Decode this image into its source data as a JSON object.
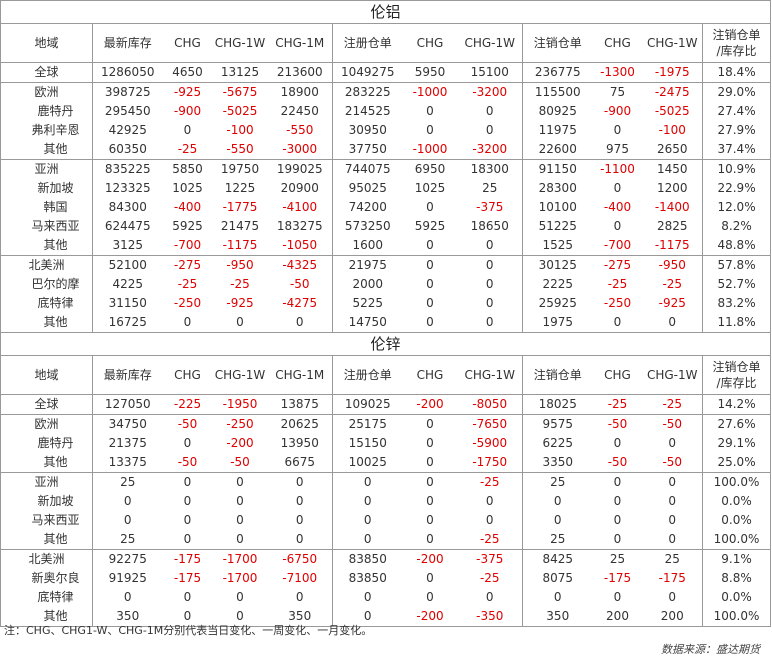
{
  "headers": [
    "地域",
    "最新库存",
    "CHG",
    "CHG-1W",
    "CHG-1M",
    "注册仓单",
    "CHG",
    "CHG-1W",
    "注销仓单",
    "CHG",
    "CHG-1W",
    "注销仓单/库存比"
  ],
  "sections": [
    {
      "title": "伦铝",
      "groups": [
        {
          "rows": [
            {
              "name": "全球",
              "sub": false,
              "cells": [
                "1286050",
                "4650",
                "13125",
                "213600",
                "1049275",
                "5950",
                "15100",
                "236775",
                "-1300",
                "-1975",
                "18.4%"
              ]
            }
          ]
        },
        {
          "rows": [
            {
              "name": "欧洲",
              "sub": false,
              "cells": [
                "398725",
                "-925",
                "-5675",
                "18900",
                "283225",
                "-1000",
                "-3200",
                "115500",
                "75",
                "-2475",
                "29.0%"
              ]
            },
            {
              "name": "鹿特丹",
              "sub": true,
              "cells": [
                "295450",
                "-900",
                "-5025",
                "22450",
                "214525",
                "0",
                "0",
                "80925",
                "-900",
                "-5025",
                "27.4%"
              ]
            },
            {
              "name": "弗利辛恩",
              "sub": true,
              "cells": [
                "42925",
                "0",
                "-100",
                "-550",
                "30950",
                "0",
                "0",
                "11975",
                "0",
                "-100",
                "27.9%"
              ]
            },
            {
              "name": "其他",
              "sub": true,
              "cells": [
                "60350",
                "-25",
                "-550",
                "-3000",
                "37750",
                "-1000",
                "-3200",
                "22600",
                "975",
                "2650",
                "37.4%"
              ]
            }
          ]
        },
        {
          "rows": [
            {
              "name": "亚洲",
              "sub": false,
              "cells": [
                "835225",
                "5850",
                "19750",
                "199025",
                "744075",
                "6950",
                "18300",
                "91150",
                "-1100",
                "1450",
                "10.9%"
              ]
            },
            {
              "name": "新加坡",
              "sub": true,
              "cells": [
                "123325",
                "1025",
                "1225",
                "20900",
                "95025",
                "1025",
                "25",
                "28300",
                "0",
                "1200",
                "22.9%"
              ]
            },
            {
              "name": "韩国",
              "sub": true,
              "cells": [
                "84300",
                "-400",
                "-1775",
                "-4100",
                "74200",
                "0",
                "-375",
                "10100",
                "-400",
                "-1400",
                "12.0%"
              ]
            },
            {
              "name": "马来西亚",
              "sub": true,
              "cells": [
                "624475",
                "5925",
                "21475",
                "183275",
                "573250",
                "5925",
                "18650",
                "51225",
                "0",
                "2825",
                "8.2%"
              ]
            },
            {
              "name": "其他",
              "sub": true,
              "cells": [
                "3125",
                "-700",
                "-1175",
                "-1050",
                "1600",
                "0",
                "0",
                "1525",
                "-700",
                "-1175",
                "48.8%"
              ]
            }
          ]
        },
        {
          "rows": [
            {
              "name": "北美洲",
              "sub": false,
              "cells": [
                "52100",
                "-275",
                "-950",
                "-4325",
                "21975",
                "0",
                "0",
                "30125",
                "-275",
                "-950",
                "57.8%"
              ]
            },
            {
              "name": "巴尔的摩",
              "sub": true,
              "cells": [
                "4225",
                "-25",
                "-25",
                "-50",
                "2000",
                "0",
                "0",
                "2225",
                "-25",
                "-25",
                "52.7%"
              ]
            },
            {
              "name": "底特律",
              "sub": true,
              "cells": [
                "31150",
                "-250",
                "-925",
                "-4275",
                "5225",
                "0",
                "0",
                "25925",
                "-250",
                "-925",
                "83.2%"
              ]
            },
            {
              "name": "其他",
              "sub": true,
              "cells": [
                "16725",
                "0",
                "0",
                "0",
                "14750",
                "0",
                "0",
                "1975",
                "0",
                "0",
                "11.8%"
              ]
            }
          ]
        }
      ]
    },
    {
      "title": "伦锌",
      "groups": [
        {
          "rows": [
            {
              "name": "全球",
              "sub": false,
              "cells": [
                "127050",
                "-225",
                "-1950",
                "13875",
                "109025",
                "-200",
                "-8050",
                "18025",
                "-25",
                "-25",
                "14.2%"
              ]
            }
          ]
        },
        {
          "rows": [
            {
              "name": "欧洲",
              "sub": false,
              "cells": [
                "34750",
                "-50",
                "-250",
                "20625",
                "25175",
                "0",
                "-7650",
                "9575",
                "-50",
                "-50",
                "27.6%"
              ]
            },
            {
              "name": "鹿特丹",
              "sub": true,
              "cells": [
                "21375",
                "0",
                "-200",
                "13950",
                "15150",
                "0",
                "-5900",
                "6225",
                "0",
                "0",
                "29.1%"
              ]
            },
            {
              "name": "其他",
              "sub": true,
              "cells": [
                "13375",
                "-50",
                "-50",
                "6675",
                "10025",
                "0",
                "-1750",
                "3350",
                "-50",
                "-50",
                "25.0%"
              ]
            }
          ]
        },
        {
          "rows": [
            {
              "name": "亚洲",
              "sub": false,
              "cells": [
                "25",
                "0",
                "0",
                "0",
                "0",
                "0",
                "-25",
                "25",
                "0",
                "0",
                "100.0%"
              ]
            },
            {
              "name": "新加坡",
              "sub": true,
              "cells": [
                "0",
                "0",
                "0",
                "0",
                "0",
                "0",
                "0",
                "0",
                "0",
                "0",
                "0.0%"
              ]
            },
            {
              "name": "马来西亚",
              "sub": true,
              "cells": [
                "0",
                "0",
                "0",
                "0",
                "0",
                "0",
                "0",
                "0",
                "0",
                "0",
                "0.0%"
              ]
            },
            {
              "name": "其他",
              "sub": true,
              "cells": [
                "25",
                "0",
                "0",
                "0",
                "0",
                "0",
                "-25",
                "25",
                "0",
                "0",
                "100.0%"
              ]
            }
          ]
        },
        {
          "rows": [
            {
              "name": "北美洲",
              "sub": false,
              "cells": [
                "92275",
                "-175",
                "-1700",
                "-6750",
                "83850",
                "-200",
                "-375",
                "8425",
                "25",
                "25",
                "9.1%"
              ]
            },
            {
              "name": "新奥尔良",
              "sub": true,
              "cells": [
                "91925",
                "-175",
                "-1700",
                "-7100",
                "83850",
                "0",
                "-25",
                "8075",
                "-175",
                "-175",
                "8.8%"
              ]
            },
            {
              "name": "底特律",
              "sub": true,
              "cells": [
                "0",
                "0",
                "0",
                "0",
                "0",
                "0",
                "0",
                "0",
                "0",
                "0",
                "0.0%"
              ]
            },
            {
              "name": "其他",
              "sub": true,
              "cells": [
                "350",
                "0",
                "0",
                "350",
                "0",
                "-200",
                "-350",
                "350",
                "200",
                "200",
                "100.0%"
              ]
            }
          ]
        }
      ]
    }
  ],
  "footer": {
    "note": "注：CHG、CHG1-W、CHG-1M分别代表当日变化、一周变化、一月变化。",
    "source": "数据来源：盛达期货"
  },
  "colors": {
    "negative": "#e00000",
    "border": "#999999"
  }
}
